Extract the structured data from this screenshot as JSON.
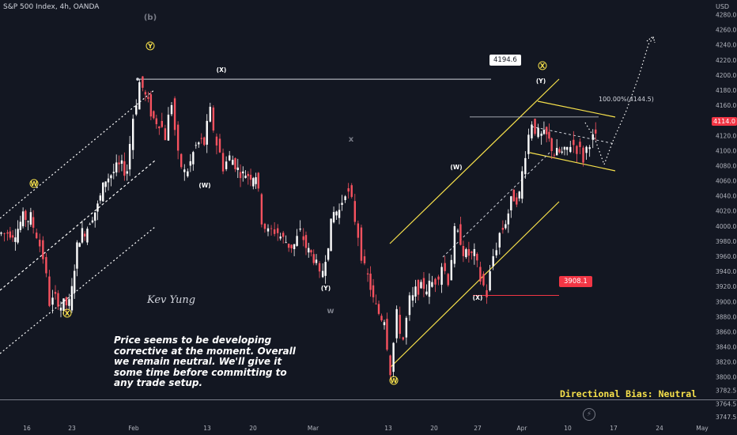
{
  "header": {
    "title": "S&P 500 Index, 4h, OANDA",
    "currency": "USD"
  },
  "last_price": "4114.0",
  "annotations": {
    "high_callout": "4194.6",
    "low_callout": "3908.1",
    "fib": "100.00%(4144.5)",
    "comment": "Price seems to be developing corrective at the moment. Overall we remain neutral. We'll give it some time before committing to any trade setup.",
    "bias": "Directional Bias: Neutral",
    "signature": "Kev Yung"
  },
  "wave_labels": {
    "b": "(b)",
    "Y_circ": "Y",
    "X_top": "(X)",
    "W_circ1": "W",
    "W_p1": "(W)",
    "X_circ1": "X",
    "Y_p": "(Y)",
    "x_grey": "x",
    "w_grey": "w",
    "W_circ2": "W",
    "W_p2": "(W)",
    "X_p": "(X)",
    "X_circ2": "X",
    "Y_p2": "(Y)"
  },
  "colors": {
    "background": "#131722",
    "bull": "#ffffff",
    "bear": "#f7525f",
    "channel": "#f7e14b",
    "dotted": "#ffffff",
    "callout_low": "#f23645"
  },
  "chart_data": {
    "type": "candlestick",
    "title": "S&P 500 Index, 4h, OANDA",
    "y_axis": {
      "unit": "USD",
      "min": 3740,
      "max": 4290,
      "ticks": [
        "4280.0",
        "4260.0",
        "4240.0",
        "4220.0",
        "4200.0",
        "4180.0",
        "4160.0",
        "4140.0",
        "4120.0",
        "4100.0",
        "4080.0",
        "4060.0",
        "4040.0",
        "4020.0",
        "4000.0",
        "3980.0",
        "3960.0",
        "3940.0",
        "3920.0",
        "3900.0",
        "3880.0",
        "3860.0",
        "3840.0",
        "3820.0",
        "3800.0",
        "3782.5",
        "3764.5",
        "3747.5"
      ]
    },
    "x_axis": {
      "ticks": [
        "16",
        "23",
        "Feb",
        "13",
        "20",
        "Mar",
        "13",
        "20",
        "27",
        "Apr",
        "10",
        "17",
        "24",
        "May"
      ]
    },
    "price_path": [
      [
        "2023-01-12",
        3990
      ],
      [
        "2023-01-13",
        4010
      ],
      [
        "2023-01-17",
        3990
      ],
      [
        "2023-01-18",
        3960
      ],
      [
        "2023-01-19",
        3900
      ],
      [
        "2023-01-20",
        3895
      ],
      [
        "2023-01-23",
        3990
      ],
      [
        "2023-01-25",
        4020
      ],
      [
        "2023-01-27",
        4075
      ],
      [
        "2023-02-01",
        4145
      ],
      [
        "2023-02-02",
        4190
      ],
      [
        "2023-02-03",
        4140
      ],
      [
        "2023-02-06",
        4120
      ],
      [
        "2023-02-07",
        4165
      ],
      [
        "2023-02-08",
        4090
      ],
      [
        "2023-02-09",
        4070
      ],
      [
        "2023-02-10",
        4110
      ],
      [
        "2023-02-13",
        4150
      ],
      [
        "2023-02-14",
        4110
      ],
      [
        "2023-02-15",
        4080
      ],
      [
        "2023-02-16",
        4090
      ],
      [
        "2023-02-17",
        4070
      ],
      [
        "2023-02-21",
        4010
      ],
      [
        "2023-02-22",
        3990
      ],
      [
        "2023-02-23",
        3995
      ],
      [
        "2023-02-24",
        3975
      ],
      [
        "2023-02-27",
        3990
      ],
      [
        "2023-02-28",
        3960
      ],
      [
        "2023-03-02",
        3930
      ],
      [
        "2023-03-03",
        4020
      ],
      [
        "2023-03-06",
        4050
      ],
      [
        "2023-03-07",
        4030
      ],
      [
        "2023-03-08",
        3990
      ],
      [
        "2023-03-09",
        3940
      ],
      [
        "2023-03-10",
        3880
      ],
      [
        "2023-03-13",
        3810
      ],
      [
        "2023-03-14",
        3880
      ],
      [
        "2023-03-15",
        3850
      ],
      [
        "2023-03-16",
        3900
      ],
      [
        "2023-03-17",
        3920
      ],
      [
        "2023-03-20",
        3930
      ],
      [
        "2023-03-21",
        3950
      ],
      [
        "2023-03-22",
        3930
      ],
      [
        "2023-03-23",
        3990
      ],
      [
        "2023-03-24",
        3960
      ],
      [
        "2023-03-27",
        3930
      ],
      [
        "2023-03-28",
        3910
      ],
      [
        "2023-03-29",
        3960
      ],
      [
        "2023-03-30",
        3990
      ],
      [
        "2023-03-31",
        4040
      ],
      [
        "2023-04-03",
        4100
      ],
      [
        "2023-04-04",
        4140
      ],
      [
        "2023-04-05",
        4120
      ],
      [
        "2023-04-06",
        4095
      ],
      [
        "2023-04-10",
        4110
      ],
      [
        "2023-04-11",
        4105
      ],
      [
        "2023-04-12",
        4090
      ],
      [
        "2023-04-13",
        4115
      ],
      [
        "2023-04-14",
        4114
      ]
    ],
    "levels": [
      {
        "label": "4194.6",
        "value": 4194.6
      },
      {
        "label": "3908.1",
        "value": 3908.1
      },
      {
        "label": "100.00%(4144.5)",
        "value": 4144.5
      }
    ]
  }
}
